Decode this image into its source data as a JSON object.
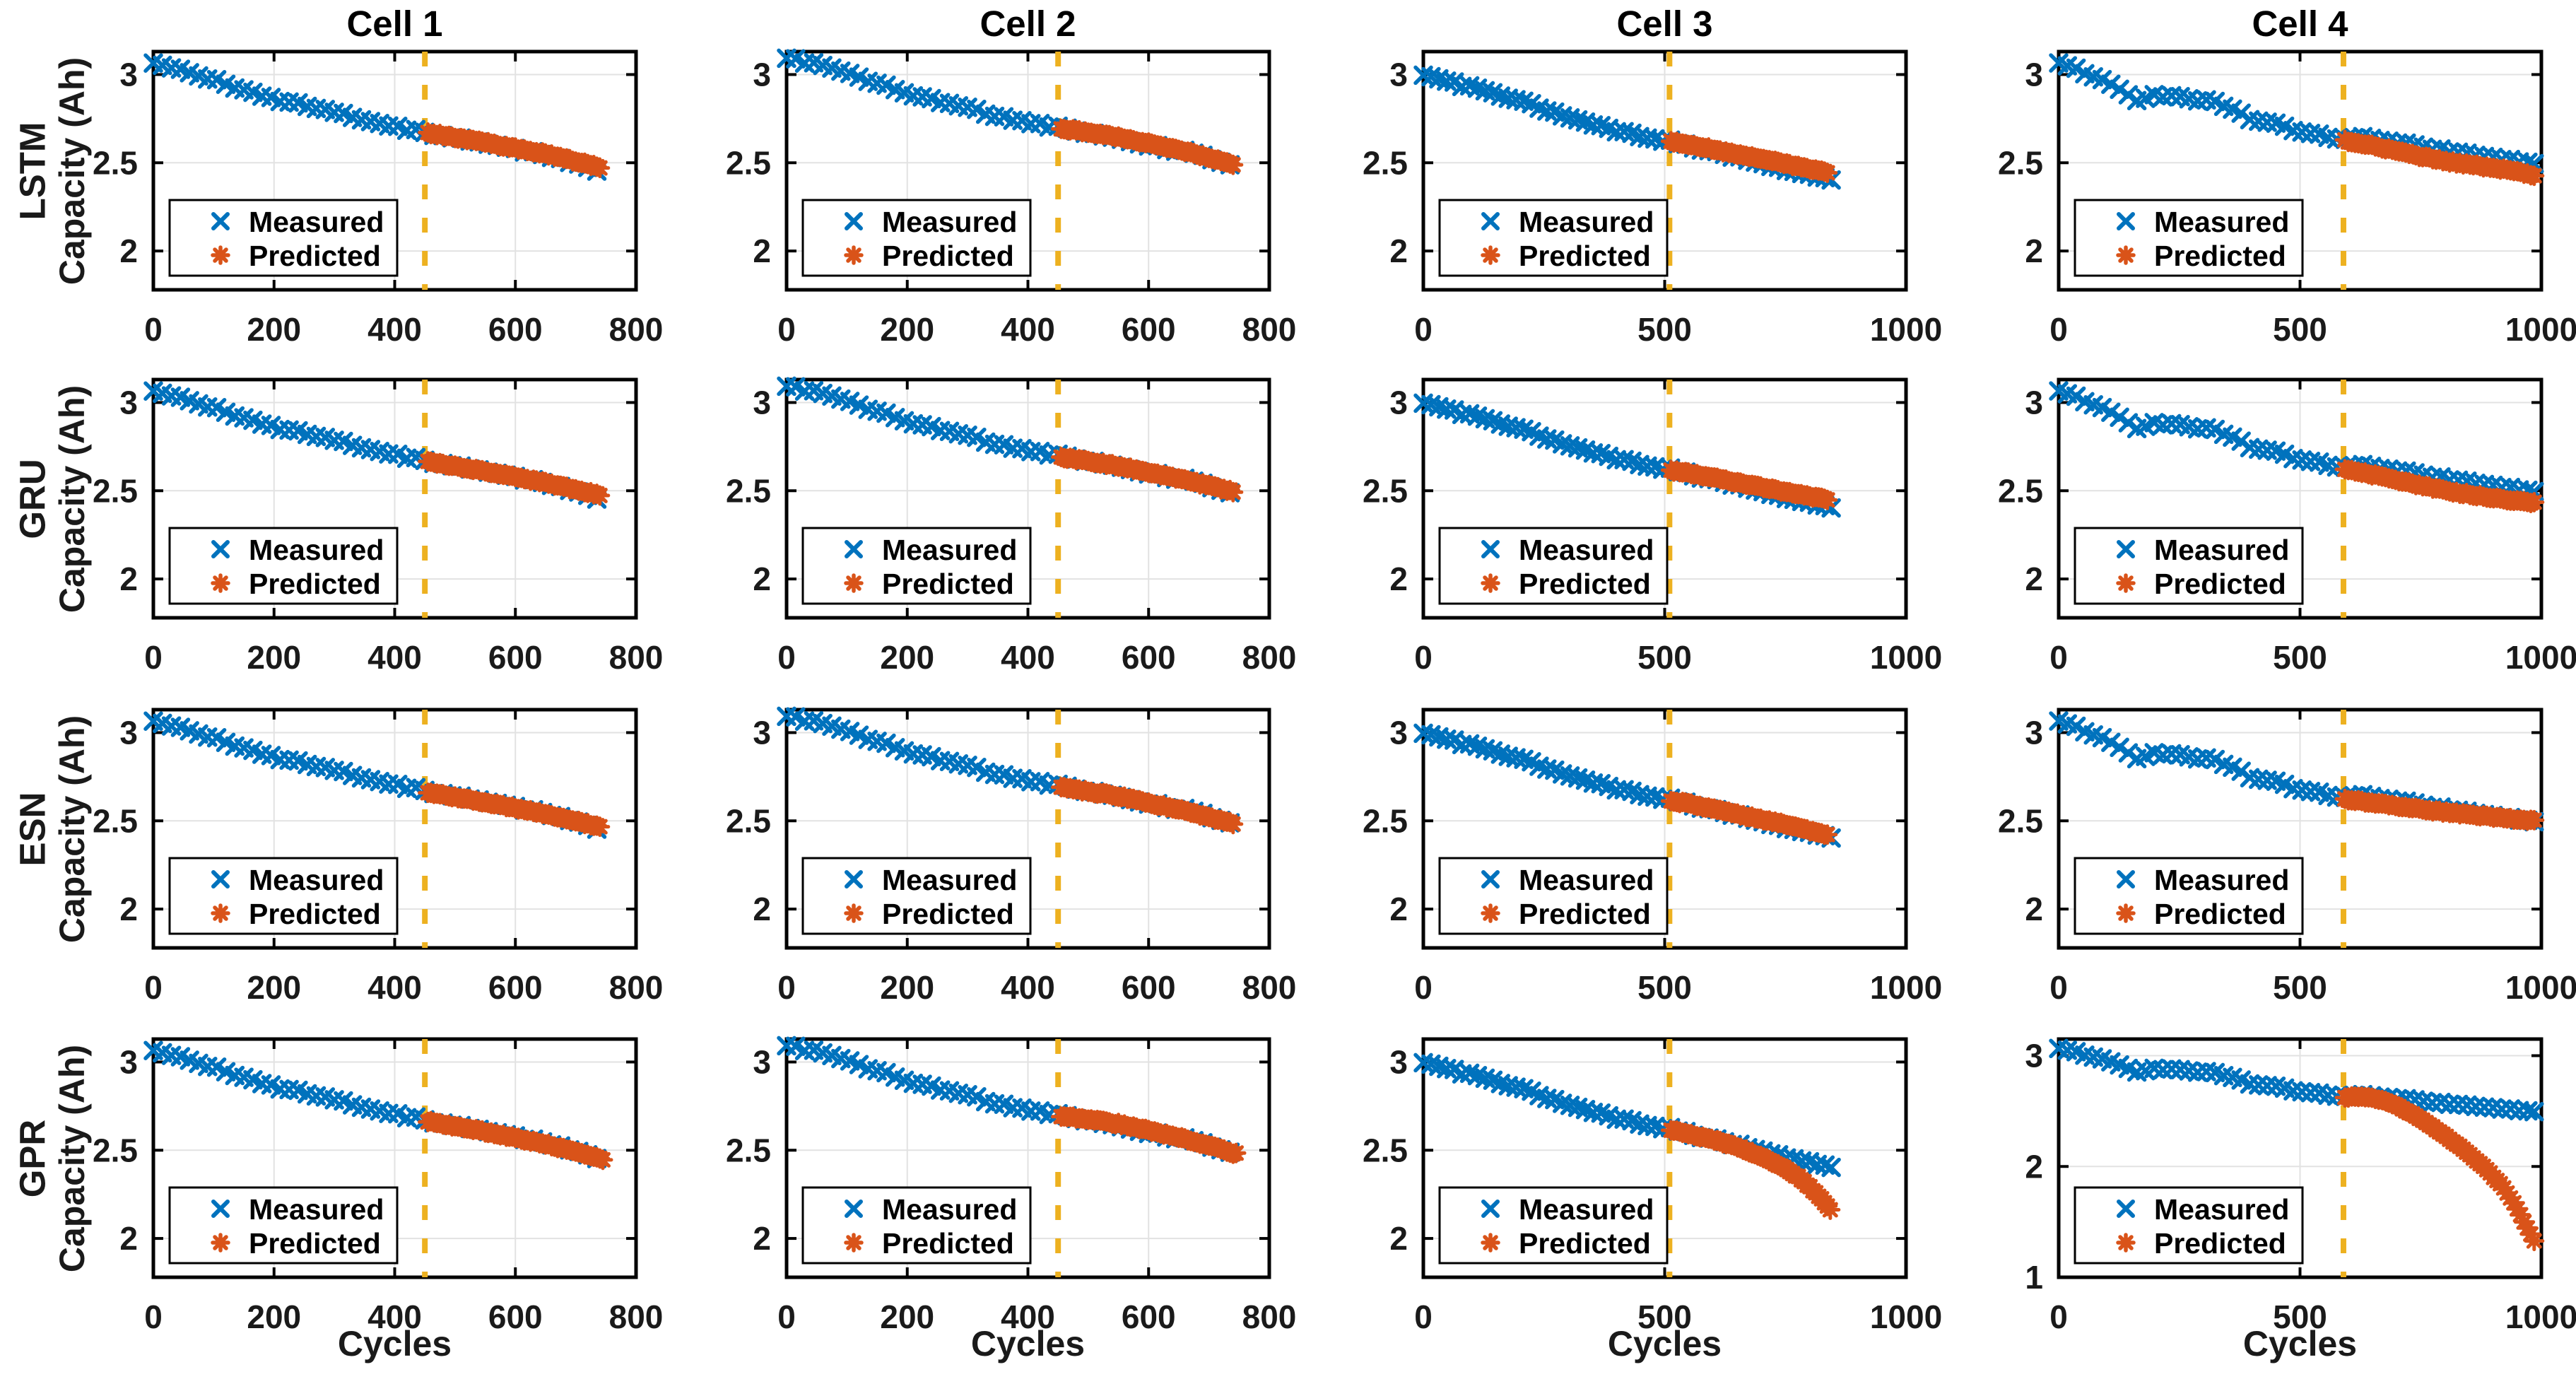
{
  "figure": {
    "col_titles": [
      "Cell 1",
      "Cell 2",
      "Cell 3",
      "Cell 4"
    ],
    "row_labels": [
      "LSTM",
      "GRU",
      "ESN",
      "GPR"
    ],
    "ylabel": "Capacity (Ah)",
    "xlabel": "Cycles"
  },
  "colors": {
    "measured": "#0072BD",
    "predicted": "#D95319",
    "split_line": "#EDB120",
    "grid": "#E2E2E2",
    "frame": "#000000",
    "text": "#1A1A1A",
    "background": "#FFFFFF"
  },
  "chart_data": {
    "type": "scatter",
    "xlabel": "Cycles",
    "ylabel": "Capacity (Ah)",
    "legend": [
      "Measured",
      "Predicted"
    ],
    "legend_position": "lower-left",
    "grid": true,
    "markers": {
      "measured": "x-cross",
      "predicted": "asterisk"
    },
    "default_ylim": [
      1.78,
      3.13
    ],
    "default_yticks": [
      2,
      2.5,
      3
    ],
    "noise": {
      "measured": 0.008,
      "predicted": 0.005
    },
    "columns": [
      {
        "title": "Cell 1",
        "xlim": [
          0,
          800
        ],
        "xticks": [
          0,
          200,
          400,
          600,
          800
        ],
        "split_cycle": 450,
        "measured_step": 15,
        "pred_step": 5,
        "measured": [
          [
            0,
            3.07
          ],
          [
            50,
            3.02
          ],
          [
            100,
            2.97
          ],
          [
            150,
            2.915
          ],
          [
            200,
            2.86
          ],
          [
            250,
            2.825
          ],
          [
            300,
            2.785
          ],
          [
            350,
            2.745
          ],
          [
            400,
            2.705
          ],
          [
            450,
            2.67
          ],
          [
            500,
            2.64
          ],
          [
            550,
            2.61
          ],
          [
            600,
            2.575
          ],
          [
            650,
            2.545
          ],
          [
            700,
            2.5
          ],
          [
            735,
            2.46
          ]
        ]
      },
      {
        "title": "Cell 2",
        "xlim": [
          0,
          800
        ],
        "xticks": [
          0,
          200,
          400,
          600,
          800
        ],
        "split_cycle": 450,
        "measured_step": 15,
        "pred_step": 5,
        "measured": [
          [
            0,
            3.1
          ],
          [
            50,
            3.055
          ],
          [
            100,
            3.005
          ],
          [
            150,
            2.95
          ],
          [
            200,
            2.895
          ],
          [
            250,
            2.85
          ],
          [
            300,
            2.81
          ],
          [
            350,
            2.765
          ],
          [
            400,
            2.73
          ],
          [
            450,
            2.7
          ],
          [
            500,
            2.665
          ],
          [
            550,
            2.635
          ],
          [
            600,
            2.6
          ],
          [
            650,
            2.57
          ],
          [
            700,
            2.53
          ],
          [
            740,
            2.475
          ]
        ]
      },
      {
        "title": "Cell 3",
        "xlim": [
          0,
          1000
        ],
        "xticks": [
          0,
          500,
          1000
        ],
        "split_cycle": 510,
        "measured_step": 16,
        "pred_step": 6,
        "measured": [
          [
            0,
            3.0
          ],
          [
            60,
            2.955
          ],
          [
            120,
            2.91
          ],
          [
            180,
            2.865
          ],
          [
            240,
            2.815
          ],
          [
            300,
            2.755
          ],
          [
            360,
            2.71
          ],
          [
            420,
            2.67
          ],
          [
            510,
            2.622
          ],
          [
            560,
            2.59
          ],
          [
            620,
            2.55
          ],
          [
            680,
            2.51
          ],
          [
            740,
            2.47
          ],
          [
            800,
            2.43
          ],
          [
            845,
            2.4
          ]
        ]
      },
      {
        "title": "Cell 4",
        "xlim": [
          0,
          1000
        ],
        "xticks": [
          0,
          500,
          1000
        ],
        "split_cycle": 590,
        "measured_step": 18,
        "pred_step": 7,
        "measured": [
          [
            0,
            3.07
          ],
          [
            30,
            3.04
          ],
          [
            60,
            3.0
          ],
          [
            90,
            2.965
          ],
          [
            120,
            2.93
          ],
          [
            150,
            2.875
          ],
          [
            170,
            2.85
          ],
          [
            200,
            2.885
          ],
          [
            230,
            2.875
          ],
          [
            270,
            2.865
          ],
          [
            310,
            2.85
          ],
          [
            350,
            2.82
          ],
          [
            380,
            2.78
          ],
          [
            400,
            2.745
          ],
          [
            420,
            2.73
          ],
          [
            450,
            2.72
          ],
          [
            480,
            2.69
          ],
          [
            510,
            2.67
          ],
          [
            540,
            2.655
          ],
          [
            590,
            2.635
          ],
          [
            620,
            2.655
          ],
          [
            650,
            2.64
          ],
          [
            700,
            2.615
          ],
          [
            750,
            2.59
          ],
          [
            800,
            2.57
          ],
          [
            850,
            2.555
          ],
          [
            900,
            2.53
          ],
          [
            950,
            2.51
          ],
          [
            985,
            2.49
          ]
        ]
      }
    ],
    "panels": [
      {
        "row": "LSTM",
        "cells": [
          {
            "predicted": [
              [
                455,
                2.67
              ],
              [
                550,
                2.615
              ],
              [
                650,
                2.55
              ],
              [
                740,
                2.475
              ]
            ]
          },
          {
            "predicted": [
              [
                455,
                2.695
              ],
              [
                550,
                2.645
              ],
              [
                650,
                2.575
              ],
              [
                740,
                2.49
              ]
            ]
          },
          {
            "predicted": [
              [
                513,
                2.62
              ],
              [
                560,
                2.6
              ],
              [
                620,
                2.565
              ],
              [
                680,
                2.535
              ],
              [
                740,
                2.5
              ],
              [
                800,
                2.465
              ],
              [
                840,
                2.445
              ]
            ]
          },
          {
            "predicted": [
              [
                593,
                2.625
              ],
              [
                620,
                2.615
              ],
              [
                660,
                2.59
              ],
              [
                700,
                2.565
              ],
              [
                750,
                2.535
              ],
              [
                800,
                2.51
              ],
              [
                850,
                2.49
              ],
              [
                900,
                2.47
              ],
              [
                940,
                2.455
              ],
              [
                985,
                2.43
              ]
            ]
          }
        ]
      },
      {
        "row": "GRU",
        "cells": [
          {
            "predicted": [
              [
                455,
                2.665
              ],
              [
                550,
                2.61
              ],
              [
                650,
                2.545
              ],
              [
                740,
                2.475
              ]
            ]
          },
          {
            "predicted": [
              [
                455,
                2.69
              ],
              [
                550,
                2.64
              ],
              [
                650,
                2.57
              ],
              [
                740,
                2.495
              ]
            ]
          },
          {
            "predicted": [
              [
                513,
                2.615
              ],
              [
                560,
                2.595
              ],
              [
                620,
                2.565
              ],
              [
                680,
                2.53
              ],
              [
                740,
                2.5
              ],
              [
                800,
                2.47
              ],
              [
                840,
                2.45
              ]
            ]
          },
          {
            "predicted": [
              [
                593,
                2.62
              ],
              [
                620,
                2.61
              ],
              [
                660,
                2.585
              ],
              [
                700,
                2.56
              ],
              [
                750,
                2.53
              ],
              [
                800,
                2.5
              ],
              [
                850,
                2.48
              ],
              [
                900,
                2.46
              ],
              [
                940,
                2.445
              ],
              [
                985,
                2.43
              ]
            ]
          }
        ]
      },
      {
        "row": "ESN",
        "cells": [
          {
            "predicted": [
              [
                455,
                2.66
              ],
              [
                550,
                2.605
              ],
              [
                650,
                2.54
              ],
              [
                740,
                2.465
              ]
            ]
          },
          {
            "predicted": [
              [
                455,
                2.69
              ],
              [
                550,
                2.64
              ],
              [
                650,
                2.565
              ],
              [
                740,
                2.485
              ]
            ]
          },
          {
            "predicted": [
              [
                513,
                2.615
              ],
              [
                560,
                2.59
              ],
              [
                620,
                2.555
              ],
              [
                680,
                2.52
              ],
              [
                740,
                2.485
              ],
              [
                800,
                2.445
              ],
              [
                840,
                2.42
              ]
            ]
          },
          {
            "predicted": [
              [
                593,
                2.62
              ],
              [
                620,
                2.615
              ],
              [
                650,
                2.6
              ],
              [
                700,
                2.585
              ],
              [
                750,
                2.565
              ],
              [
                800,
                2.55
              ],
              [
                850,
                2.535
              ],
              [
                900,
                2.52
              ],
              [
                940,
                2.51
              ],
              [
                985,
                2.5
              ]
            ]
          }
        ]
      },
      {
        "row": "GPR",
        "cells": [
          {
            "predicted": [
              [
                455,
                2.665
              ],
              [
                550,
                2.605
              ],
              [
                650,
                2.535
              ],
              [
                745,
                2.45
              ]
            ]
          },
          {
            "predicted": [
              [
                455,
                2.695
              ],
              [
                550,
                2.65
              ],
              [
                650,
                2.575
              ],
              [
                745,
                2.48
              ]
            ]
          },
          {
            "predicted": [
              [
                513,
                2.615
              ],
              [
                560,
                2.585
              ],
              [
                600,
                2.56
              ],
              [
                650,
                2.52
              ],
              [
                700,
                2.465
              ],
              [
                750,
                2.4
              ],
              [
                790,
                2.32
              ],
              [
                820,
                2.24
              ],
              [
                845,
                2.16
              ]
            ]
          },
          {
            "ylim": [
              1.0,
              3.15
            ],
            "yticks": [
              1,
              2,
              3
            ],
            "predicted": [
              [
                593,
                2.625
              ],
              [
                615,
                2.63
              ],
              [
                640,
                2.625
              ],
              [
                670,
                2.6
              ],
              [
                700,
                2.55
              ],
              [
                730,
                2.48
              ],
              [
                760,
                2.4
              ],
              [
                800,
                2.28
              ],
              [
                840,
                2.15
              ],
              [
                880,
                2.0
              ],
              [
                920,
                1.82
              ],
              [
                950,
                1.62
              ],
              [
                970,
                1.45
              ],
              [
                985,
                1.33
              ]
            ]
          }
        ]
      }
    ]
  }
}
